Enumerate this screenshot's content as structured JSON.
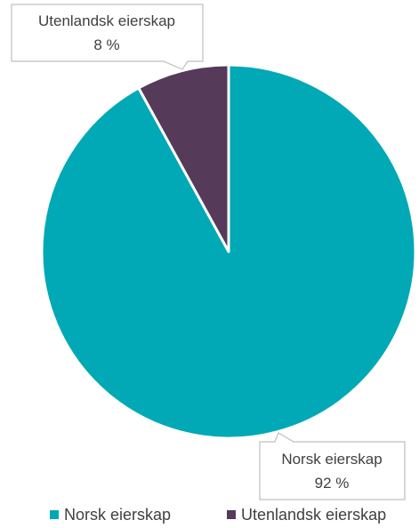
{
  "chart_data": {
    "type": "pie",
    "title": "",
    "slices": [
      {
        "label": "Norsk eierskap",
        "value": 92,
        "value_label": "92 %",
        "color": "#00A9B5"
      },
      {
        "label": "Utenlandsk eierskap",
        "value": 8,
        "value_label": "8 %",
        "color": "#553A5A"
      }
    ],
    "start_angle_deg": 0,
    "direction": "clockwise",
    "legend_position": "bottom",
    "slice_border_color": "#FFFFFF",
    "callout_border_color": "#BFBFBF",
    "text_color": "#404040"
  }
}
